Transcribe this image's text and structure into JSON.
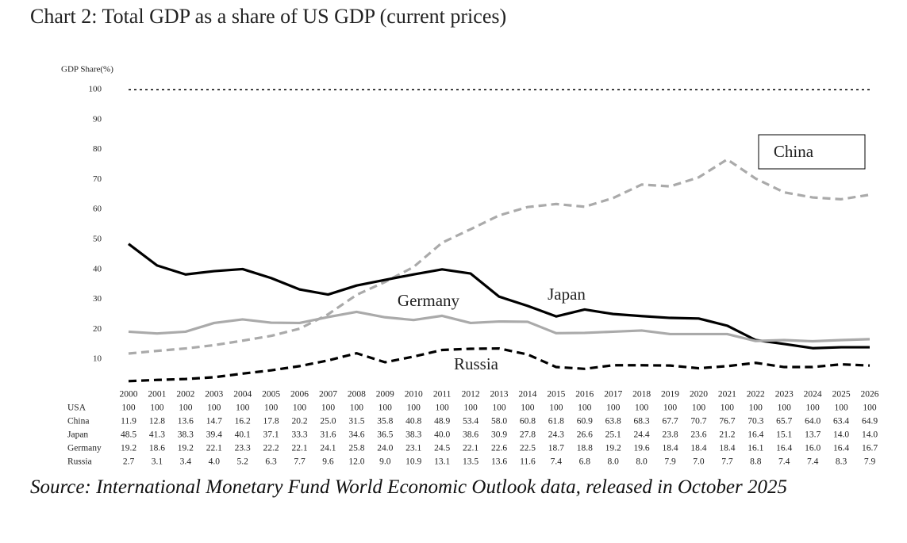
{
  "chart_data": {
    "type": "line",
    "title": "Chart 2: Total GDP as a share of US GDP (current prices)",
    "y_label": "GDP Share(%)",
    "source": "Source: International Monetary Fund World Economic Outlook data, released in October 2025",
    "x": [
      2000,
      2001,
      2002,
      2003,
      2004,
      2005,
      2006,
      2007,
      2008,
      2009,
      2010,
      2011,
      2012,
      2013,
      2014,
      2015,
      2016,
      2017,
      2018,
      2019,
      2020,
      2021,
      2022,
      2023,
      2024,
      2025,
      2026
    ],
    "ylim": [
      0,
      100
    ],
    "yticks": [
      10,
      20,
      30,
      40,
      50,
      60,
      70,
      80,
      90,
      100
    ],
    "series": [
      {
        "name": "USA",
        "color": "#000000",
        "style": "dotted",
        "values": [
          100,
          100,
          100,
          100,
          100,
          100,
          100,
          100,
          100,
          100,
          100,
          100,
          100,
          100,
          100,
          100,
          100,
          100,
          100,
          100,
          100,
          100,
          100,
          100,
          100,
          100,
          100
        ],
        "value_labels": [
          "100",
          "100",
          "100",
          "100",
          "100",
          "100",
          "100",
          "100",
          "100",
          "100",
          "100",
          "100",
          "100",
          "100",
          "100",
          "100",
          "100",
          "100",
          "100",
          "100",
          "100",
          "100",
          "100",
          "100",
          "100",
          "100",
          "100"
        ]
      },
      {
        "name": "China",
        "color": "#aaaaaa",
        "style": "dashed",
        "values": [
          11.9,
          12.8,
          13.6,
          14.7,
          16.2,
          17.8,
          20.2,
          25.0,
          31.5,
          35.8,
          40.8,
          48.9,
          53.4,
          58.0,
          60.8,
          61.8,
          60.9,
          63.8,
          68.3,
          67.7,
          70.7,
          76.7,
          70.3,
          65.7,
          64.0,
          63.4,
          64.9
        ],
        "value_labels": [
          "11.9",
          "12.8",
          "13.6",
          "14.7",
          "16.2",
          "17.8",
          "20.2",
          "25.0",
          "31.5",
          "35.8",
          "40.8",
          "48.9",
          "53.4",
          "58.0",
          "60.8",
          "61.8",
          "60.9",
          "63.8",
          "68.3",
          "67.7",
          "70.7",
          "76.7",
          "70.3",
          "65.7",
          "64.0",
          "63.4",
          "64.9"
        ]
      },
      {
        "name": "Japan",
        "color": "#000000",
        "style": "solid",
        "values": [
          48.5,
          41.3,
          38.3,
          39.4,
          40.1,
          37.1,
          33.3,
          31.6,
          34.6,
          36.5,
          38.3,
          40.0,
          38.6,
          30.9,
          27.8,
          24.3,
          26.6,
          25.1,
          24.4,
          23.8,
          23.6,
          21.2,
          16.4,
          15.1,
          13.7,
          14.0,
          14.0
        ],
        "value_labels": [
          "48.5",
          "41.3",
          "38.3",
          "39.4",
          "40.1",
          "37.1",
          "33.3",
          "31.6",
          "34.6",
          "36.5",
          "38.3",
          "40.0",
          "38.6",
          "30.9",
          "27.8",
          "24.3",
          "26.6",
          "25.1",
          "24.4",
          "23.8",
          "23.6",
          "21.2",
          "16.4",
          "15.1",
          "13.7",
          "14.0",
          "14.0"
        ]
      },
      {
        "name": "Germany",
        "color": "#aaaaaa",
        "style": "solid",
        "values": [
          19.2,
          18.6,
          19.2,
          22.1,
          23.3,
          22.2,
          22.1,
          24.1,
          25.8,
          24.0,
          23.1,
          24.5,
          22.1,
          22.6,
          22.5,
          18.7,
          18.8,
          19.2,
          19.6,
          18.4,
          18.4,
          18.4,
          16.1,
          16.4,
          16.0,
          16.4,
          16.7
        ],
        "value_labels": [
          "19.2",
          "18.6",
          "19.2",
          "22.1",
          "23.3",
          "22.2",
          "22.1",
          "24.1",
          "25.8",
          "24.0",
          "23.1",
          "24.5",
          "22.1",
          "22.6",
          "22.5",
          "18.7",
          "18.8",
          "19.2",
          "19.6",
          "18.4",
          "18.4",
          "18.4",
          "16.1",
          "16.4",
          "16.0",
          "16.4",
          "16.7"
        ]
      },
      {
        "name": "Russia",
        "color": "#000000",
        "style": "dashed",
        "values": [
          2.7,
          3.1,
          3.4,
          4.0,
          5.2,
          6.3,
          7.7,
          9.6,
          12.0,
          9.0,
          10.9,
          13.1,
          13.5,
          13.6,
          11.6,
          7.4,
          6.8,
          8.0,
          8.0,
          7.9,
          7.0,
          7.7,
          8.8,
          7.4,
          7.4,
          8.3,
          7.9
        ],
        "value_labels": [
          "2.7",
          "3.1",
          "3.4",
          "4.0",
          "5.2",
          "6.3",
          "7.7",
          "9.6",
          "12.0",
          "9.0",
          "10.9",
          "13.1",
          "13.5",
          "13.6",
          "11.6",
          "7.4",
          "6.8",
          "8.0",
          "8.0",
          "7.9",
          "7.0",
          "7.7",
          "8.8",
          "7.4",
          "7.4",
          "8.3",
          "7.9"
        ]
      }
    ]
  }
}
